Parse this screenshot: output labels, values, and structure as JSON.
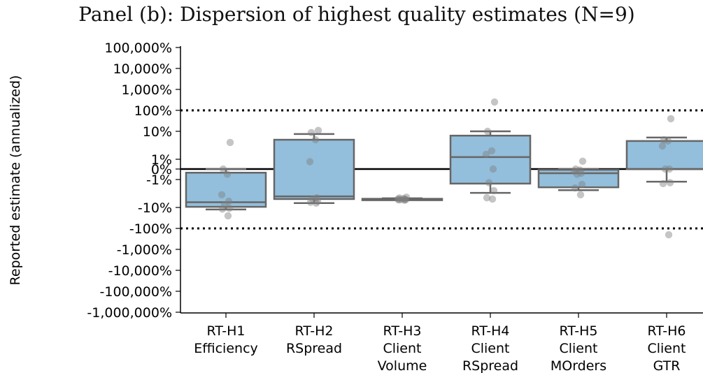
{
  "chart_data": {
    "type": "box",
    "title": "Panel (b): Dispersion of highest quality estimates (N=9)",
    "xlabel": "",
    "ylabel": "Reported estimate (annualized)",
    "yscale": "symlog",
    "yticks": [
      "100,000%",
      "10,000%",
      "1,000%",
      "100%",
      "10%",
      "1%",
      "0%",
      "-1%",
      "-10%",
      "-100%",
      "-1,000%",
      "-10,000%",
      "-100,000%",
      "-1,000,000%"
    ],
    "ylim": [
      "-1,000,000%",
      "100,000%"
    ],
    "reference_lines": [
      {
        "value": "100%",
        "style": "dotted"
      },
      {
        "value": "0%",
        "style": "solid"
      },
      {
        "value": "-100%",
        "style": "dotted"
      }
    ],
    "box_color": "#93bfdc",
    "categories": [
      [
        "RT-H1",
        "Efficiency"
      ],
      [
        "RT-H2",
        "RSpread"
      ],
      [
        "RT-H3",
        "Client",
        "Volume"
      ],
      [
        "RT-H4",
        "Client",
        "RSpread"
      ],
      [
        "RT-H5",
        "Client",
        "MOrders"
      ],
      [
        "RT-H6",
        "Client",
        "GTR"
      ]
    ],
    "boxes": [
      {
        "whisker_low": -12.5,
        "q1": -9.5,
        "median": -6.5,
        "q3": -0.35,
        "whisker_high": 0
      },
      {
        "whisker_low": -7,
        "q1": -5,
        "median": -4,
        "q3": 5,
        "whisker_high": 8
      },
      {
        "whisker_low": -5.4,
        "q1": -5.3,
        "median": -5.1,
        "q3": -4.9,
        "whisker_high": -4.7
      },
      {
        "whisker_low": -3,
        "q1": -1.4,
        "median": 1.2,
        "q3": 7,
        "whisker_high": 10
      },
      {
        "whisker_low": -2.4,
        "q1": -1.9,
        "median": -0.4,
        "q3": -0.07,
        "whisker_high": 0
      },
      {
        "whisker_low": -1.2,
        "q1": 0,
        "median": 0,
        "q3": 4.5,
        "whisker_high": 6
      }
    ],
    "points": [
      [
        4,
        0,
        -0.5,
        -3.5,
        -6,
        -8,
        -11,
        -12,
        -25
      ],
      [
        11,
        9,
        5,
        0.75,
        -4.5,
        -5,
        -6,
        -6.5,
        -7
      ],
      [
        -4.3,
        -4.6,
        -4.8,
        -5,
        -5.1,
        -5.2,
        -5.3,
        -5.4,
        -5.5
      ],
      [
        250,
        10,
        2,
        1.5,
        0,
        -1.3,
        -2.5,
        -4.5,
        -5
      ],
      [
        0.8,
        0,
        -0.1,
        -0.2,
        -0.4,
        -0.5,
        -1.5,
        -2,
        -3.5
      ],
      [
        40,
        5,
        4.5,
        3,
        0,
        0,
        -1.3,
        -1.4,
        -200
      ]
    ]
  }
}
